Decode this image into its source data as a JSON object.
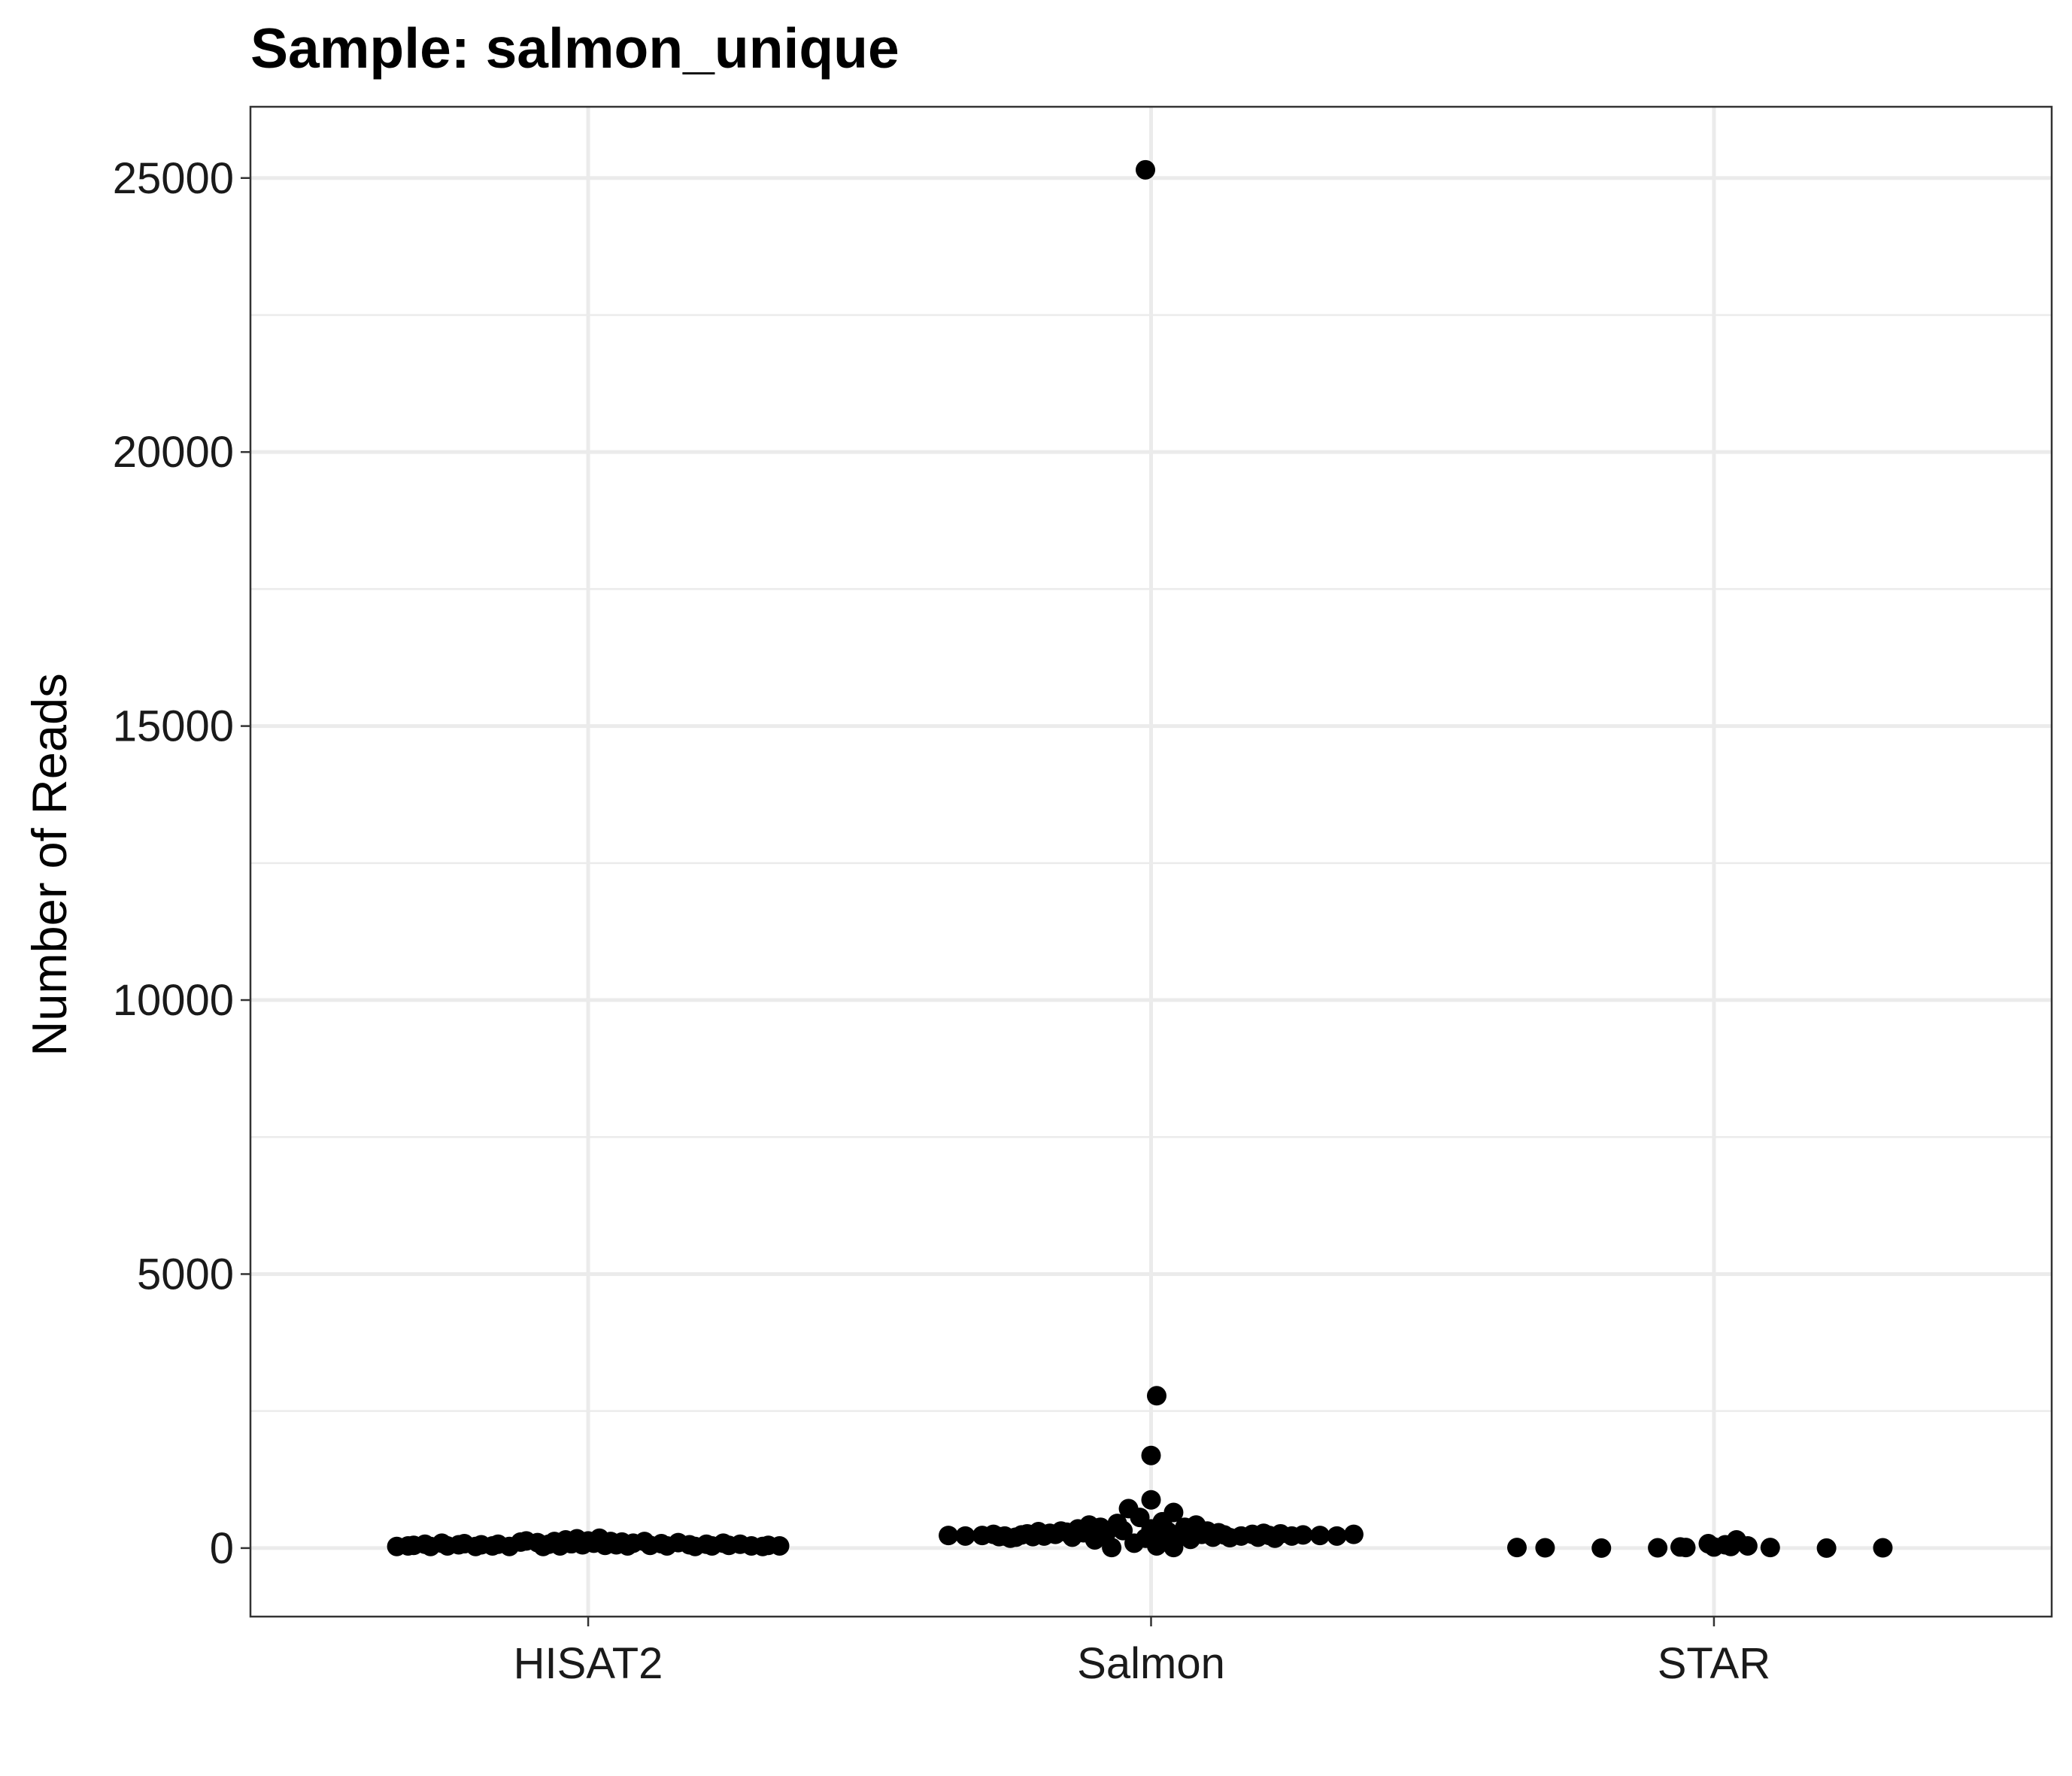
{
  "chart_data": {
    "type": "scatter",
    "title": "Sample: salmon_unique",
    "xlabel": "",
    "ylabel": "Number of Reads",
    "categories": [
      "HISAT2",
      "Salmon",
      "STAR"
    ],
    "ylim": [
      -1250,
      26300
    ],
    "yticks": [
      0,
      5000,
      10000,
      15000,
      20000,
      25000
    ],
    "ytick_labels": [
      "0",
      "5000",
      "10000",
      "15000",
      "20000",
      "25000"
    ],
    "grid": true,
    "point_color": "#000000",
    "series": [
      {
        "category": "HISAT2",
        "points": [
          {
            "x": 0.66,
            "y": 30
          },
          {
            "x": 0.68,
            "y": 40
          },
          {
            "x": 0.69,
            "y": 50
          },
          {
            "x": 0.71,
            "y": 70
          },
          {
            "x": 0.72,
            "y": 30
          },
          {
            "x": 0.74,
            "y": 90
          },
          {
            "x": 0.75,
            "y": 40
          },
          {
            "x": 0.77,
            "y": 60
          },
          {
            "x": 0.78,
            "y": 80
          },
          {
            "x": 0.8,
            "y": 30
          },
          {
            "x": 0.81,
            "y": 60
          },
          {
            "x": 0.83,
            "y": 40
          },
          {
            "x": 0.84,
            "y": 70
          },
          {
            "x": 0.86,
            "y": 30
          },
          {
            "x": 0.88,
            "y": 110
          },
          {
            "x": 0.89,
            "y": 130
          },
          {
            "x": 0.91,
            "y": 100
          },
          {
            "x": 0.92,
            "y": 30
          },
          {
            "x": 0.93,
            "y": 70
          },
          {
            "x": 0.94,
            "y": 120
          },
          {
            "x": 0.95,
            "y": 40
          },
          {
            "x": 0.96,
            "y": 150
          },
          {
            "x": 0.97,
            "y": 80
          },
          {
            "x": 0.98,
            "y": 170
          },
          {
            "x": 0.99,
            "y": 60
          },
          {
            "x": 1.0,
            "y": 130
          },
          {
            "x": 1.01,
            "y": 90
          },
          {
            "x": 1.02,
            "y": 180
          },
          {
            "x": 1.03,
            "y": 50
          },
          {
            "x": 1.04,
            "y": 120
          },
          {
            "x": 1.05,
            "y": 60
          },
          {
            "x": 1.06,
            "y": 110
          },
          {
            "x": 1.07,
            "y": 40
          },
          {
            "x": 1.08,
            "y": 90
          },
          {
            "x": 1.1,
            "y": 120
          },
          {
            "x": 1.11,
            "y": 50
          },
          {
            "x": 1.13,
            "y": 80
          },
          {
            "x": 1.14,
            "y": 40
          },
          {
            "x": 1.16,
            "y": 100
          },
          {
            "x": 1.18,
            "y": 60
          },
          {
            "x": 1.19,
            "y": 30
          },
          {
            "x": 1.21,
            "y": 70
          },
          {
            "x": 1.22,
            "y": 40
          },
          {
            "x": 1.24,
            "y": 90
          },
          {
            "x": 1.25,
            "y": 50
          },
          {
            "x": 1.27,
            "y": 70
          },
          {
            "x": 1.29,
            "y": 40
          },
          {
            "x": 1.31,
            "y": 30
          },
          {
            "x": 1.32,
            "y": 50
          },
          {
            "x": 1.34,
            "y": 40
          }
        ]
      },
      {
        "category": "Salmon",
        "points": [
          {
            "x": 1.64,
            "y": 230
          },
          {
            "x": 1.67,
            "y": 220
          },
          {
            "x": 1.7,
            "y": 230
          },
          {
            "x": 1.72,
            "y": 250
          },
          {
            "x": 1.73,
            "y": 210
          },
          {
            "x": 1.74,
            "y": 220
          },
          {
            "x": 1.75,
            "y": 180
          },
          {
            "x": 1.76,
            "y": 200
          },
          {
            "x": 1.77,
            "y": 240
          },
          {
            "x": 1.78,
            "y": 260
          },
          {
            "x": 1.79,
            "y": 210
          },
          {
            "x": 1.8,
            "y": 300
          },
          {
            "x": 1.81,
            "y": 220
          },
          {
            "x": 1.82,
            "y": 270
          },
          {
            "x": 1.83,
            "y": 250
          },
          {
            "x": 1.84,
            "y": 310
          },
          {
            "x": 1.85,
            "y": 290
          },
          {
            "x": 1.86,
            "y": 200
          },
          {
            "x": 1.87,
            "y": 350
          },
          {
            "x": 1.88,
            "y": 280
          },
          {
            "x": 1.89,
            "y": 420
          },
          {
            "x": 1.9,
            "y": 150
          },
          {
            "x": 1.91,
            "y": 380
          },
          {
            "x": 1.92,
            "y": 270
          },
          {
            "x": 1.93,
            "y": 10
          },
          {
            "x": 1.94,
            "y": 450
          },
          {
            "x": 1.95,
            "y": 320
          },
          {
            "x": 1.96,
            "y": 720
          },
          {
            "x": 1.97,
            "y": 90
          },
          {
            "x": 1.98,
            "y": 560
          },
          {
            "x": 1.99,
            "y": 25150
          },
          {
            "x": 1.99,
            "y": 180
          },
          {
            "x": 2.0,
            "y": 880
          },
          {
            "x": 2.0,
            "y": 350
          },
          {
            "x": 2.01,
            "y": 2780
          },
          {
            "x": 2.01,
            "y": 40
          },
          {
            "x": 2.02,
            "y": 480
          },
          {
            "x": 2.02,
            "y": 130
          },
          {
            "x": 2.03,
            "y": 300
          },
          {
            "x": 2.04,
            "y": 10
          },
          {
            "x": 2.04,
            "y": 650
          },
          {
            "x": 2.05,
            "y": 220
          },
          {
            "x": 2.06,
            "y": 380
          },
          {
            "x": 2.07,
            "y": 160
          },
          {
            "x": 2.08,
            "y": 420
          },
          {
            "x": 2.09,
            "y": 250
          },
          {
            "x": 2.1,
            "y": 310
          },
          {
            "x": 2.11,
            "y": 200
          },
          {
            "x": 2.12,
            "y": 280
          },
          {
            "x": 2.13,
            "y": 240
          },
          {
            "x": 2.14,
            "y": 190
          },
          {
            "x": 2.16,
            "y": 220
          },
          {
            "x": 2.18,
            "y": 250
          },
          {
            "x": 2.19,
            "y": 200
          },
          {
            "x": 2.2,
            "y": 270
          },
          {
            "x": 2.21,
            "y": 230
          },
          {
            "x": 2.22,
            "y": 180
          },
          {
            "x": 2.23,
            "y": 260
          },
          {
            "x": 2.25,
            "y": 220
          },
          {
            "x": 2.27,
            "y": 240
          },
          {
            "x": 2.3,
            "y": 230
          },
          {
            "x": 2.33,
            "y": 220
          },
          {
            "x": 2.36,
            "y": 250
          },
          {
            "x": 2.0,
            "y": 1690
          }
        ]
      },
      {
        "category": "STAR",
        "points": [
          {
            "x": 2.65,
            "y": 10
          },
          {
            "x": 2.7,
            "y": 5
          },
          {
            "x": 2.8,
            "y": 0
          },
          {
            "x": 2.9,
            "y": 5
          },
          {
            "x": 2.94,
            "y": 20
          },
          {
            "x": 2.95,
            "y": 10
          },
          {
            "x": 2.99,
            "y": 80
          },
          {
            "x": 3.0,
            "y": 20
          },
          {
            "x": 3.02,
            "y": 60
          },
          {
            "x": 3.03,
            "y": 30
          },
          {
            "x": 3.04,
            "y": 150
          },
          {
            "x": 3.06,
            "y": 40
          },
          {
            "x": 3.1,
            "y": 10
          },
          {
            "x": 3.2,
            "y": 0
          },
          {
            "x": 3.3,
            "y": 5
          }
        ]
      }
    ]
  }
}
